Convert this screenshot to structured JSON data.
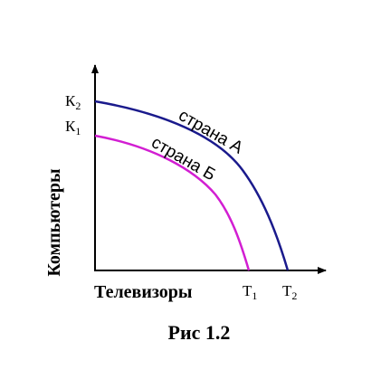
{
  "chart_data": {
    "type": "line",
    "title": "",
    "xlabel": "Телевизоры",
    "ylabel": "Компьютеры",
    "caption": "Рис 1.2",
    "x_ticks": [
      {
        "main": "Т",
        "sub": "1"
      },
      {
        "main": "Т",
        "sub": "2"
      }
    ],
    "y_ticks": [
      {
        "main": "К",
        "sub": "2"
      },
      {
        "main": "К",
        "sub": "1"
      }
    ],
    "series": [
      {
        "name": "страна А",
        "color": "#1a1a8c",
        "intercepts": {
          "x": "Т2",
          "y": "К2"
        },
        "shape": "concave-downward production possibility frontier"
      },
      {
        "name": "страна Б",
        "color": "#d21ed2",
        "intercepts": {
          "x": "Т1",
          "y": "К1"
        },
        "shape": "concave-downward production possibility frontier"
      }
    ],
    "axes_arrows": true,
    "grid": false
  }
}
